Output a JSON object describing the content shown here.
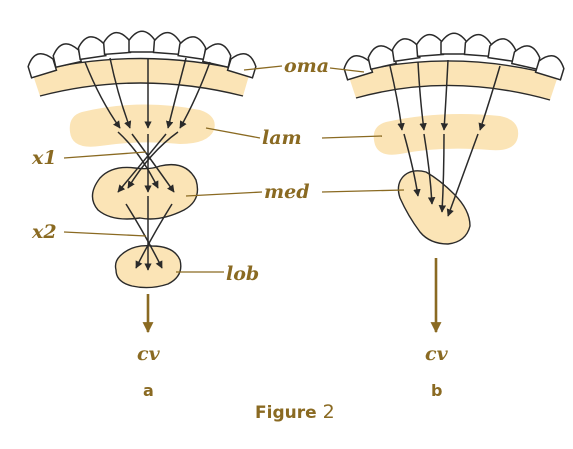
{
  "labels": {
    "oma": "oma",
    "lam": "lam",
    "med": "med",
    "lob": "lob",
    "x1": "x1",
    "x2": "x2",
    "cv_a": "cv",
    "cv_b": "cv"
  },
  "panels": {
    "a": "a",
    "b": "b"
  },
  "caption": {
    "word": "Figure",
    "number": "2"
  },
  "colors": {
    "label": "#8a6a22",
    "neuropil_fill": "#fbe4b6",
    "ink": "#2a2a2a"
  }
}
